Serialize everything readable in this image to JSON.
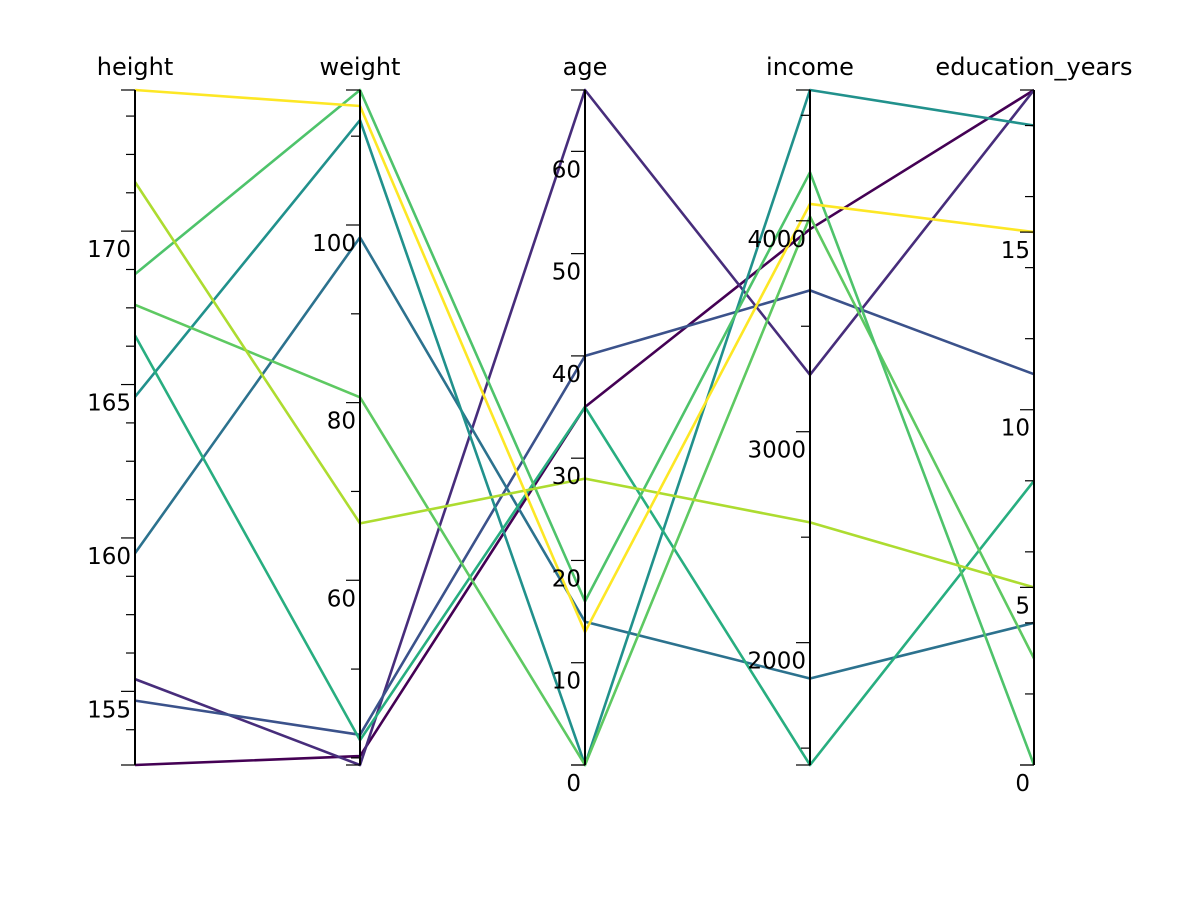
{
  "chart_data": {
    "type": "parallel_coordinates",
    "title": "",
    "legend": "none",
    "grid": false,
    "axes": [
      {
        "key": "height",
        "label": "height",
        "range": [
          152.6,
          174.6
        ],
        "ticks": [
          155,
          160,
          165,
          170
        ],
        "minor_ticks": [
          153.75,
          156.25,
          157.5,
          158.75,
          161.25,
          162.5,
          163.75,
          166.25,
          167.5,
          168.75,
          171.25,
          172.5,
          173.75
        ],
        "tick_side": "left"
      },
      {
        "key": "weight",
        "label": "weight",
        "range": [
          39.2,
          115.2
        ],
        "ticks": [
          60,
          80,
          100
        ],
        "minor_ticks": [
          40,
          50,
          70,
          90,
          110
        ],
        "tick_side": "left"
      },
      {
        "key": "age",
        "label": "age",
        "range": [
          0,
          66
        ],
        "ticks": [
          0,
          10,
          20,
          30,
          40,
          50,
          60
        ],
        "minor_ticks": [],
        "tick_side": "left"
      },
      {
        "key": "income",
        "label": "income",
        "range": [
          1420,
          4620
        ],
        "ticks": [
          2000,
          3000,
          4000
        ],
        "minor_ticks": [
          1500,
          2500,
          3500,
          4500
        ],
        "tick_side": "left"
      },
      {
        "key": "education_years",
        "label": "education_years",
        "range": [
          0,
          19
        ],
        "ticks": [
          0,
          5,
          10,
          15
        ],
        "minor_ticks": [
          2,
          4,
          6,
          8,
          12,
          14,
          16,
          18
        ],
        "tick_side": "left"
      }
    ],
    "color_scale": "viridis",
    "series": [
      {
        "values": [
          152.6,
          40.2,
          35,
          3960,
          19
        ],
        "color": "#440154"
      },
      {
        "values": [
          155.4,
          39.2,
          66,
          3270,
          19
        ],
        "color": "#472d7b"
      },
      {
        "values": [
          154.7,
          42.6,
          40,
          3670,
          11
        ],
        "color": "#3b528b"
      },
      {
        "values": [
          159.5,
          98.6,
          14,
          1830,
          4
        ],
        "color": "#2c728e"
      },
      {
        "values": [
          164.6,
          111.8,
          0,
          4620,
          18
        ],
        "color": "#21918c"
      },
      {
        "values": [
          166.6,
          42.0,
          35,
          1420,
          8
        ],
        "color": "#28ae80"
      },
      {
        "values": [
          167.6,
          80.6,
          0,
          4020,
          3
        ],
        "color": "#5ec962"
      },
      {
        "values": [
          168.6,
          115.2,
          16,
          4230,
          0
        ],
        "color": "#4ec36b"
      },
      {
        "values": [
          171.6,
          66.4,
          28,
          2570,
          5
        ],
        "color": "#addc30"
      },
      {
        "values": [
          174.6,
          113.4,
          13,
          4080,
          15
        ],
        "color": "#fde725"
      }
    ]
  }
}
